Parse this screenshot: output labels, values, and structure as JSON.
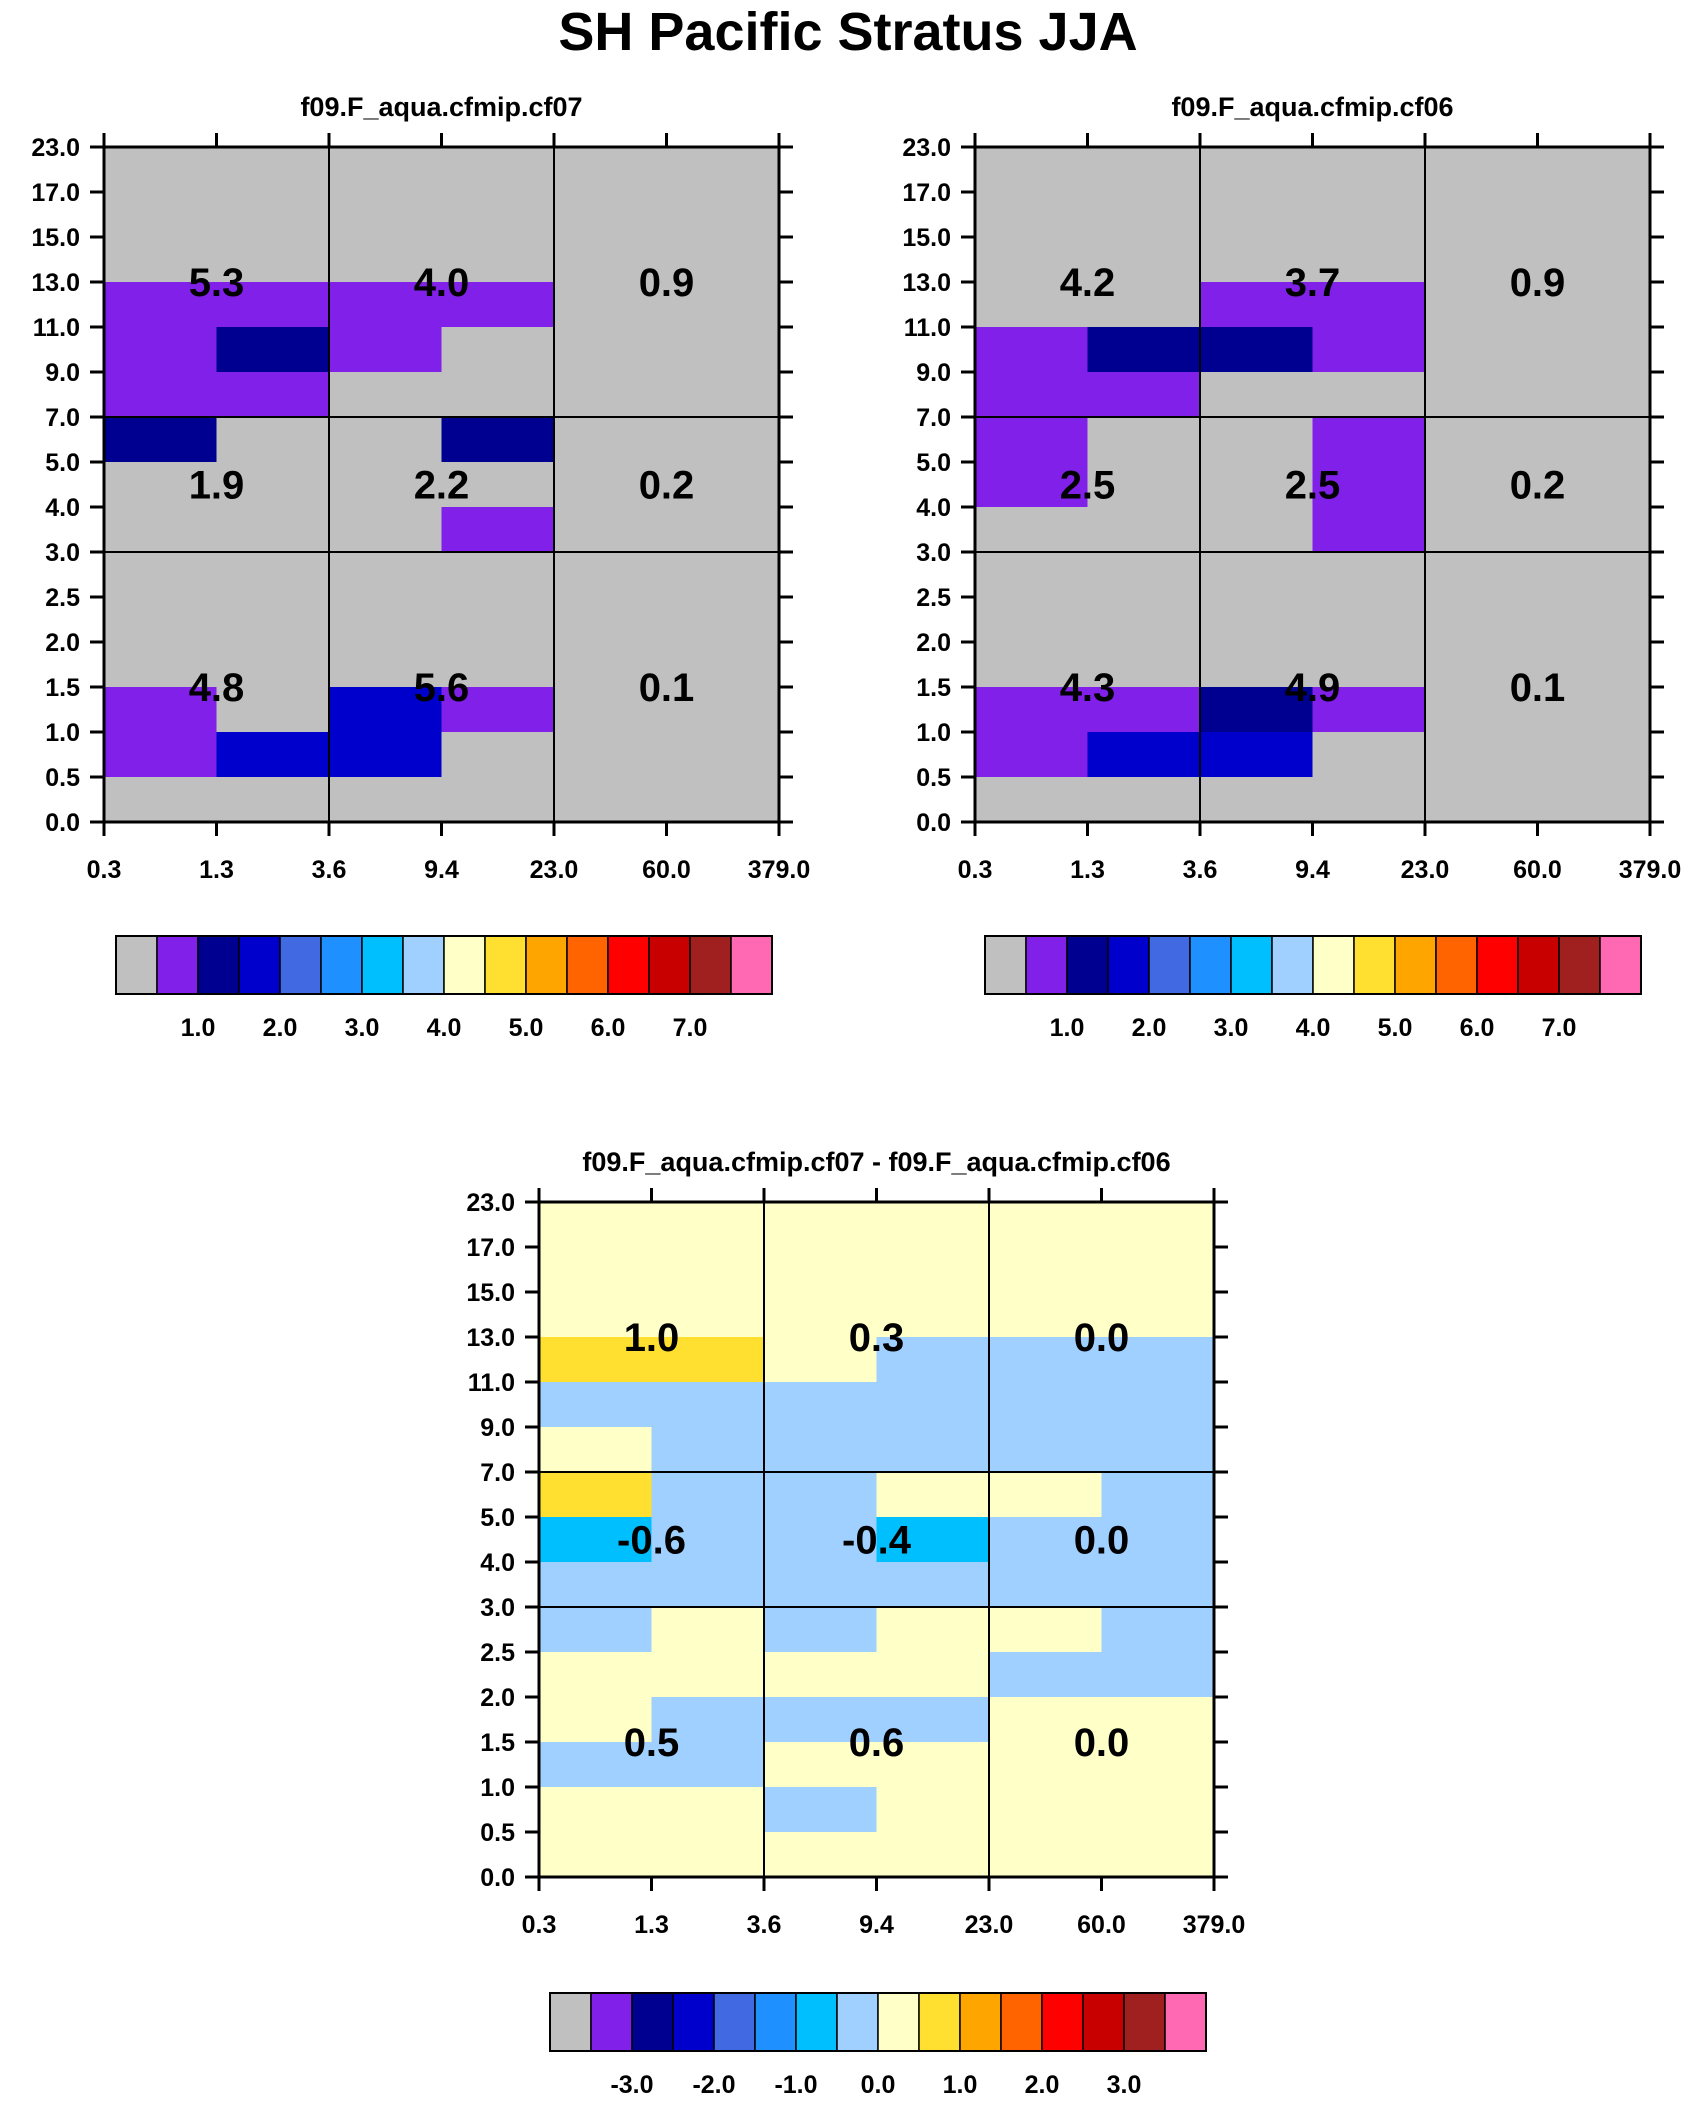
{
  "title": "SH Pacific Stratus JJA",
  "colors": {
    "palette": [
      "#c0c0c0",
      "#8020e8",
      "#000090",
      "#0000cd",
      "#4169e1",
      "#1e90ff",
      "#00bfff",
      "#a0d0ff",
      "#ffffc8",
      "#ffe030",
      "#ffa500",
      "#ff6400",
      "#ff0000",
      "#c80000",
      "#a02020",
      "#ff69b4"
    ]
  },
  "chart_data": [
    {
      "type": "heatmap",
      "title": "f09.F_aqua.cfmip.cf07",
      "x_tick_labels": [
        "0.3",
        "1.3",
        "3.6",
        "9.4",
        "23.0",
        "60.0",
        "379.0"
      ],
      "y_tick_labels": [
        "0.0",
        "0.5",
        "1.0",
        "1.5",
        "2.0",
        "2.5",
        "3.0",
        "4.0",
        "5.0",
        "7.0",
        "9.0",
        "11.0",
        "13.0",
        "15.0",
        "17.0",
        "23.0"
      ],
      "cell_colors_top_to_bottom": [
        [
          0,
          0,
          0,
          0,
          0,
          0
        ],
        [
          0,
          0,
          0,
          0,
          0,
          0
        ],
        [
          0,
          0,
          0,
          0,
          0,
          0
        ],
        [
          1,
          1,
          1,
          1,
          0,
          0
        ],
        [
          1,
          2,
          1,
          0,
          0,
          0
        ],
        [
          1,
          1,
          0,
          0,
          0,
          0
        ],
        [
          2,
          0,
          0,
          2,
          0,
          0
        ],
        [
          0,
          0,
          0,
          0,
          0,
          0
        ],
        [
          0,
          0,
          0,
          1,
          0,
          0
        ],
        [
          0,
          0,
          0,
          0,
          0,
          0
        ],
        [
          0,
          0,
          0,
          0,
          0,
          0
        ],
        [
          0,
          0,
          0,
          0,
          0,
          0
        ],
        [
          1,
          0,
          3,
          1,
          0,
          0
        ],
        [
          1,
          3,
          3,
          0,
          0,
          0
        ],
        [
          0,
          0,
          0,
          0,
          0,
          0
        ]
      ],
      "box_values": [
        [
          "5.3",
          "4.0",
          "0.9"
        ],
        [
          "1.9",
          "2.2",
          "0.2"
        ],
        [
          "4.8",
          "5.6",
          "0.1"
        ]
      ],
      "colorbar": {
        "labels": [
          "1.0",
          "2.0",
          "3.0",
          "4.0",
          "5.0",
          "6.0",
          "7.0"
        ],
        "color_indices": [
          0,
          1,
          2,
          3,
          4,
          5,
          6,
          7,
          8,
          9,
          10,
          11,
          12,
          13,
          14,
          15
        ]
      }
    },
    {
      "type": "heatmap",
      "title": "f09.F_aqua.cfmip.cf06",
      "x_tick_labels": [
        "0.3",
        "1.3",
        "3.6",
        "9.4",
        "23.0",
        "60.0",
        "379.0"
      ],
      "y_tick_labels": [
        "0.0",
        "0.5",
        "1.0",
        "1.5",
        "2.0",
        "2.5",
        "3.0",
        "4.0",
        "5.0",
        "7.0",
        "9.0",
        "11.0",
        "13.0",
        "15.0",
        "17.0",
        "23.0"
      ],
      "cell_colors_top_to_bottom": [
        [
          0,
          0,
          0,
          0,
          0,
          0
        ],
        [
          0,
          0,
          0,
          0,
          0,
          0
        ],
        [
          0,
          0,
          0,
          0,
          0,
          0
        ],
        [
          0,
          0,
          1,
          1,
          0,
          0
        ],
        [
          1,
          2,
          2,
          1,
          0,
          0
        ],
        [
          1,
          1,
          0,
          0,
          0,
          0
        ],
        [
          1,
          0,
          0,
          1,
          0,
          0
        ],
        [
          1,
          0,
          0,
          1,
          0,
          0
        ],
        [
          0,
          0,
          0,
          1,
          0,
          0
        ],
        [
          0,
          0,
          0,
          0,
          0,
          0
        ],
        [
          0,
          0,
          0,
          0,
          0,
          0
        ],
        [
          0,
          0,
          0,
          0,
          0,
          0
        ],
        [
          1,
          1,
          2,
          1,
          0,
          0
        ],
        [
          1,
          3,
          3,
          0,
          0,
          0
        ],
        [
          0,
          0,
          0,
          0,
          0,
          0
        ]
      ],
      "box_values": [
        [
          "4.2",
          "3.7",
          "0.9"
        ],
        [
          "2.5",
          "2.5",
          "0.2"
        ],
        [
          "4.3",
          "4.9",
          "0.1"
        ]
      ],
      "colorbar": {
        "labels": [
          "1.0",
          "2.0",
          "3.0",
          "4.0",
          "5.0",
          "6.0",
          "7.0"
        ],
        "color_indices": [
          0,
          1,
          2,
          3,
          4,
          5,
          6,
          7,
          8,
          9,
          10,
          11,
          12,
          13,
          14,
          15
        ]
      }
    },
    {
      "type": "heatmap",
      "title": "f09.F_aqua.cfmip.cf07 - f09.F_aqua.cfmip.cf06",
      "x_tick_labels": [
        "0.3",
        "1.3",
        "3.6",
        "9.4",
        "23.0",
        "60.0",
        "379.0"
      ],
      "y_tick_labels": [
        "0.0",
        "0.5",
        "1.0",
        "1.5",
        "2.0",
        "2.5",
        "3.0",
        "4.0",
        "5.0",
        "7.0",
        "9.0",
        "11.0",
        "13.0",
        "15.0",
        "17.0",
        "23.0"
      ],
      "cell_colors_top_to_bottom": [
        [
          8,
          8,
          8,
          8,
          8,
          8
        ],
        [
          8,
          8,
          8,
          8,
          8,
          8
        ],
        [
          8,
          8,
          8,
          8,
          8,
          8
        ],
        [
          9,
          9,
          8,
          7,
          7,
          7
        ],
        [
          7,
          7,
          7,
          7,
          7,
          7
        ],
        [
          8,
          7,
          7,
          7,
          7,
          7
        ],
        [
          9,
          7,
          7,
          8,
          8,
          7
        ],
        [
          6,
          7,
          7,
          6,
          7,
          7
        ],
        [
          7,
          7,
          7,
          7,
          7,
          7
        ],
        [
          7,
          8,
          7,
          8,
          8,
          7
        ],
        [
          8,
          8,
          8,
          8,
          7,
          7
        ],
        [
          8,
          7,
          7,
          7,
          8,
          8
        ],
        [
          7,
          7,
          8,
          8,
          8,
          8
        ],
        [
          8,
          8,
          7,
          8,
          8,
          8
        ],
        [
          8,
          8,
          8,
          8,
          8,
          8
        ]
      ],
      "box_values": [
        [
          "1.0",
          "0.3",
          "0.0"
        ],
        [
          "-0.6",
          "-0.4",
          "0.0"
        ],
        [
          "0.5",
          "0.6",
          "0.0"
        ]
      ],
      "colorbar": {
        "labels": [
          "-3.0",
          "-2.0",
          "-1.0",
          "0.0",
          "1.0",
          "2.0",
          "3.0"
        ],
        "color_indices": [
          0,
          1,
          2,
          3,
          4,
          5,
          6,
          7,
          8,
          9,
          10,
          11,
          12,
          13,
          14,
          15
        ]
      }
    }
  ]
}
